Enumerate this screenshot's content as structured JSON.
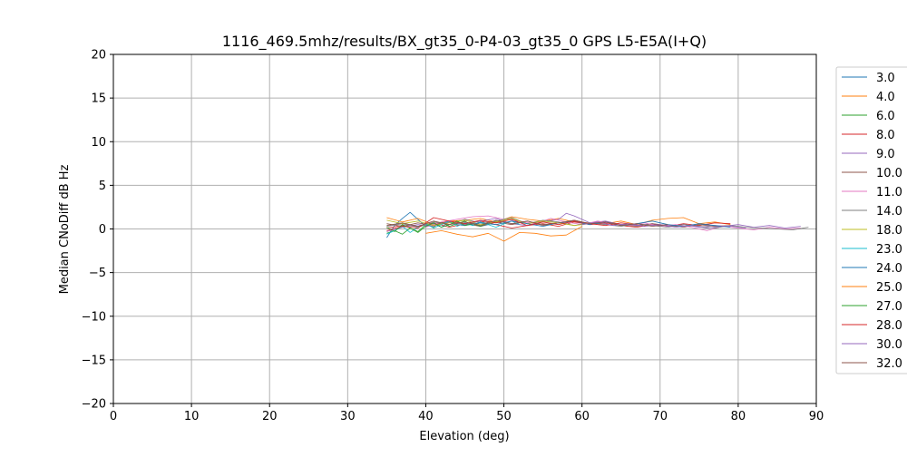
{
  "chart_data": {
    "type": "line",
    "title": "1116_469.5mhz/results/BX_gt35_0-P4-03_gt35_0 GPS L5-E5A(I+Q)",
    "xlabel": "Elevation (deg)",
    "ylabel": "Median CNoDiff dB Hz",
    "xlim": [
      0,
      90
    ],
    "ylim": [
      -20,
      20
    ],
    "xticks": [
      0,
      10,
      20,
      30,
      40,
      50,
      60,
      70,
      80,
      90
    ],
    "yticks": [
      -20,
      -15,
      -10,
      -5,
      0,
      5,
      10,
      15,
      20
    ],
    "grid": true,
    "legend_position": "outside-right",
    "series": [
      {
        "name": "3.0",
        "color": "#1f77b4",
        "x": [
          35,
          36,
          37,
          38,
          39,
          40,
          41,
          42,
          43,
          44,
          45,
          46,
          47,
          48
        ],
        "y": [
          -1.0,
          0.4,
          1.2,
          1.9,
          1.1,
          0.3,
          0.6,
          0.2,
          0.8,
          0.5,
          0.4,
          0.7,
          0.3,
          0.5
        ]
      },
      {
        "name": "4.0",
        "color": "#ff7f0e",
        "x": [
          35,
          37,
          39,
          41,
          43,
          45,
          47,
          49,
          51,
          53,
          55,
          57,
          59,
          61,
          63,
          65,
          67,
          69,
          71,
          73,
          75,
          77,
          79
        ],
        "y": [
          1.3,
          0.8,
          1.2,
          0.5,
          0.9,
          1.0,
          1.2,
          0.8,
          1.4,
          1.1,
          0.9,
          1.2,
          0.8,
          0.7,
          0.6,
          0.9,
          0.5,
          1.0,
          1.2,
          1.3,
          0.6,
          0.8,
          0.5
        ]
      },
      {
        "name": "6.0",
        "color": "#2ca02c",
        "x": [
          35,
          36,
          37,
          38,
          39,
          40,
          41,
          42,
          43,
          44,
          45,
          46,
          47,
          48,
          49,
          50
        ],
        "y": [
          -0.5,
          -0.2,
          -0.6,
          0.1,
          -0.3,
          0.5,
          0.2,
          0.8,
          0.3,
          0.6,
          0.9,
          0.4,
          0.7,
          0.5,
          0.9,
          0.6
        ]
      },
      {
        "name": "8.0",
        "color": "#d62728",
        "x": [
          35,
          37,
          39,
          41,
          43,
          45,
          47,
          49,
          51,
          53,
          55,
          57,
          59,
          61,
          63,
          65,
          67,
          69,
          71,
          73,
          75,
          77,
          79
        ],
        "y": [
          0.1,
          0.4,
          0.3,
          0.7,
          0.2,
          0.6,
          0.9,
          0.5,
          0.1,
          0.4,
          0.6,
          0.3,
          0.8,
          0.5,
          0.7,
          0.4,
          0.2,
          0.5,
          0.3,
          0.6,
          0.4,
          0.7,
          0.6
        ]
      },
      {
        "name": "9.0",
        "color": "#9467bd",
        "x": [
          35,
          37,
          39,
          41,
          43,
          45,
          47,
          49,
          51,
          53,
          55,
          57,
          58,
          59,
          61,
          63,
          65,
          67,
          69,
          71,
          73,
          75,
          77,
          79,
          81
        ],
        "y": [
          -0.3,
          0.2,
          0.5,
          0.3,
          0.8,
          0.5,
          0.9,
          1.2,
          0.6,
          0.4,
          0.8,
          1.1,
          1.8,
          1.5,
          0.7,
          0.9,
          0.5,
          0.4,
          0.6,
          0.3,
          0.5,
          0.2,
          0.4,
          0.3,
          0.1
        ]
      },
      {
        "name": "10.0",
        "color": "#8c564b",
        "x": [
          35,
          37,
          39,
          41,
          43,
          45,
          47,
          49,
          51,
          53,
          55,
          57,
          59,
          61,
          63,
          65,
          67,
          69,
          71,
          73,
          75,
          77,
          79
        ],
        "y": [
          0.6,
          0.3,
          0.7,
          0.4,
          0.9,
          0.6,
          0.3,
          0.8,
          0.5,
          0.9,
          0.4,
          0.7,
          1.0,
          0.6,
          0.8,
          0.5,
          0.3,
          0.6,
          0.4,
          0.2,
          0.5,
          0.3,
          0.4
        ]
      },
      {
        "name": "11.0",
        "color": "#e377c2",
        "x": [
          40,
          42,
          44,
          46,
          48,
          50,
          52,
          54,
          56,
          58,
          60,
          62,
          64,
          66,
          68,
          70,
          72,
          74,
          76,
          78,
          80,
          82,
          84,
          86,
          88
        ],
        "y": [
          0.2,
          0.8,
          1.1,
          1.4,
          1.5,
          1.1,
          0.9,
          0.6,
          1.2,
          0.8,
          0.5,
          0.9,
          0.6,
          0.4,
          0.7,
          0.3,
          0.5,
          0.2,
          -0.2,
          0.3,
          0.1,
          -0.1,
          0.2,
          0.0,
          0.1
        ]
      },
      {
        "name": "14.0",
        "color": "#7f7f7f",
        "x": [
          35,
          37,
          39,
          41,
          43,
          45,
          47,
          49,
          51,
          53,
          55,
          57,
          59,
          61,
          63,
          65,
          67,
          69,
          71,
          73,
          75,
          77,
          79,
          81,
          83,
          85,
          87,
          89
        ],
        "y": [
          0.3,
          0.6,
          0.2,
          0.8,
          0.5,
          1.1,
          0.7,
          0.9,
          1.3,
          0.6,
          1.0,
          0.8,
          0.4,
          0.7,
          0.5,
          0.3,
          0.6,
          0.4,
          0.2,
          0.5,
          0.3,
          0.1,
          0.4,
          0.2,
          0.1,
          0.0,
          -0.1,
          0.2
        ]
      },
      {
        "name": "18.0",
        "color": "#bcbd22",
        "x": [
          35,
          37,
          39,
          41,
          43,
          45,
          47,
          49,
          51,
          53,
          55,
          57,
          59,
          61
        ],
        "y": [
          1.0,
          0.6,
          0.9,
          0.4,
          0.7,
          1.0,
          0.5,
          0.8,
          1.2,
          0.6,
          0.9,
          0.7,
          0.4,
          0.6
        ]
      },
      {
        "name": "23.0",
        "color": "#17becf",
        "x": [
          35,
          36,
          37,
          38,
          39,
          40,
          41,
          42,
          43,
          44,
          45,
          46,
          47,
          48,
          49,
          50,
          51,
          52
        ],
        "y": [
          -0.6,
          -0.2,
          0.3,
          -0.4,
          0.2,
          0.6,
          0.1,
          0.5,
          0.9,
          0.3,
          0.7,
          0.4,
          0.8,
          0.5,
          0.2,
          0.6,
          0.9,
          0.5
        ]
      },
      {
        "name": "24.0",
        "color": "#1f77b4",
        "x": [
          45,
          47,
          49,
          51,
          53,
          55,
          57,
          59,
          61,
          63,
          65,
          67,
          69,
          71,
          73,
          75,
          77,
          79
        ],
        "y": [
          0.4,
          0.7,
          0.5,
          0.9,
          0.6,
          0.3,
          0.7,
          0.9,
          0.5,
          0.8,
          0.4,
          0.6,
          0.9,
          0.5,
          0.3,
          0.6,
          0.4,
          0.2
        ]
      },
      {
        "name": "25.0",
        "color": "#ff7f0e",
        "x": [
          40,
          42,
          44,
          46,
          48,
          50,
          52,
          54,
          56,
          58,
          60
        ],
        "y": [
          -0.5,
          -0.2,
          -0.6,
          -0.9,
          -0.5,
          -1.4,
          -0.4,
          -0.5,
          -0.8,
          -0.7,
          0.3
        ]
      },
      {
        "name": "27.0",
        "color": "#2ca02c",
        "x": [
          35,
          36,
          37,
          38,
          39,
          40,
          41,
          42,
          43,
          44,
          45,
          46,
          47,
          48
        ],
        "y": [
          0.2,
          -0.3,
          0.5,
          0.1,
          -0.4,
          0.3,
          0.7,
          0.2,
          0.5,
          0.9,
          0.4,
          0.6,
          0.3,
          0.7
        ]
      },
      {
        "name": "28.0",
        "color": "#d62728",
        "x": [
          35,
          37,
          39,
          41,
          43,
          45,
          47,
          49,
          51,
          53,
          55,
          57,
          59,
          61,
          63,
          65,
          67
        ],
        "y": [
          -0.2,
          0.3,
          0.1,
          1.3,
          0.9,
          0.6,
          1.0,
          0.7,
          1.1,
          0.4,
          0.8,
          0.5,
          0.9,
          0.6,
          0.4,
          0.7,
          0.5
        ]
      },
      {
        "name": "30.0",
        "color": "#9467bd",
        "x": [
          60,
          62,
          64,
          66,
          68,
          70,
          72,
          74,
          76,
          78,
          80,
          82,
          84,
          86,
          88
        ],
        "y": [
          0.5,
          0.8,
          0.4,
          0.6,
          0.3,
          0.5,
          0.2,
          0.4,
          0.1,
          0.3,
          0.5,
          0.2,
          0.4,
          0.1,
          0.3
        ]
      },
      {
        "name": "32.0",
        "color": "#8c564b",
        "x": [
          35,
          37,
          39,
          41,
          43,
          45,
          47,
          49,
          51,
          53,
          55,
          57,
          59,
          61,
          63,
          65,
          67,
          69,
          71
        ],
        "y": [
          0.4,
          0.7,
          0.3,
          0.9,
          0.5,
          0.8,
          0.4,
          1.0,
          0.6,
          0.9,
          0.5,
          0.7,
          1.0,
          0.6,
          0.8,
          0.4,
          0.6,
          0.3,
          0.5
        ]
      }
    ]
  }
}
